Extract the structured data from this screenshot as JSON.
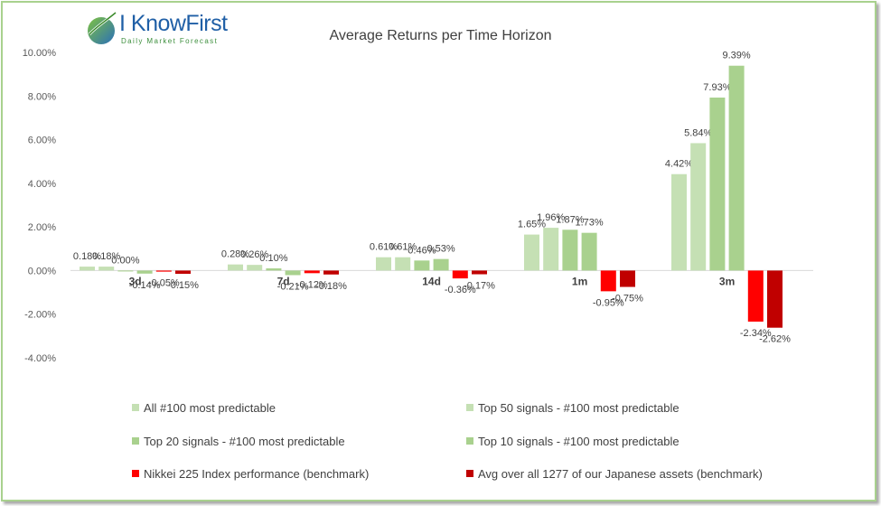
{
  "brand": {
    "name": "I KnowFirst",
    "tagline": "Daily Market Forecast"
  },
  "chart_data": {
    "type": "bar",
    "title": "Average Returns per Time Horizon",
    "xlabel": "",
    "ylabel": "",
    "ylim": [
      -4,
      10
    ],
    "yticks": [
      -4,
      -2,
      0,
      2,
      4,
      6,
      8,
      10
    ],
    "ytick_labels": [
      "-4.00%",
      "-2.00%",
      "0.00%",
      "2.00%",
      "4.00%",
      "6.00%",
      "8.00%",
      "10.00%"
    ],
    "grid": false,
    "legend_position": "bottom",
    "categories": [
      "3d",
      "7d",
      "14d",
      "1m",
      "3m"
    ],
    "series": [
      {
        "name": "All #100 most predictable",
        "color": "#c5e0b4",
        "values": [
          0.18,
          0.28,
          0.61,
          1.65,
          4.42
        ],
        "labels": [
          "0.18%",
          "0.28%",
          "0.61%",
          "1.65%",
          "4.42%"
        ]
      },
      {
        "name": "Top 50 signals - #100 most predictable",
        "color": "#c5e0b4",
        "values": [
          0.18,
          0.26,
          0.61,
          1.96,
          5.84
        ],
        "labels": [
          "0.18%",
          "0.26%",
          "0.61%",
          "1.96%",
          "5.84%"
        ]
      },
      {
        "name": "Top 20 signals - #100 most predictable",
        "color": "#a9d18e",
        "values": [
          0.0,
          0.1,
          0.46,
          1.87,
          7.93
        ],
        "labels": [
          "0.00%",
          "0.10%",
          "0.46%",
          "1.87%",
          "7.93%"
        ]
      },
      {
        "name": "Top 10 signals - #100 most predictable",
        "color": "#a9d18e",
        "values": [
          -0.14,
          -0.21,
          0.53,
          1.73,
          9.39
        ],
        "labels": [
          "-0.14%",
          "-0.21%",
          "0.53%",
          "1.73%",
          "9.39%"
        ]
      },
      {
        "name": "Nikkei 225 Index performance (benchmark)",
        "color": "#ff0000",
        "values": [
          -0.05,
          -0.12,
          -0.36,
          -0.95,
          -2.34
        ],
        "labels": [
          "-0.05%",
          "-0.12%",
          "-0.36%",
          "-0.95%",
          "-2.34%"
        ]
      },
      {
        "name": "Avg over all 1277 of our Japanese assets (benchmark)",
        "color": "#c00000",
        "values": [
          -0.15,
          -0.18,
          -0.17,
          -0.75,
          -2.62
        ],
        "labels": [
          "-0.15%",
          "-0.18%",
          "-0.17%",
          "-0.75%",
          "-2.62%"
        ]
      }
    ]
  }
}
